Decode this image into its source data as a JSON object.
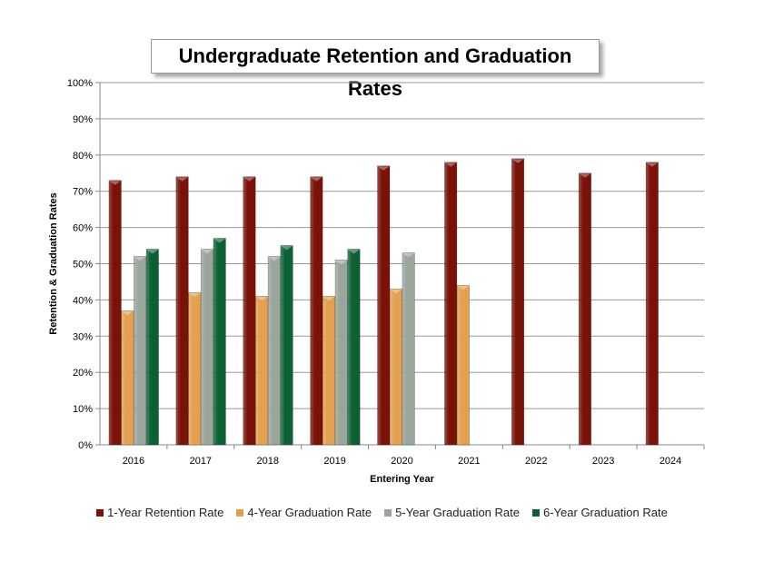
{
  "chart_data": {
    "type": "bar",
    "title": "Undergraduate Retention and Graduation Rates",
    "xlabel": "Entering Year",
    "ylabel": "Retention & Graduation Rates",
    "ylim": [
      0,
      100
    ],
    "yticks": [
      "0%",
      "10%",
      "20%",
      "30%",
      "40%",
      "50%",
      "60%",
      "70%",
      "80%",
      "90%",
      "100%"
    ],
    "categories": [
      "2016",
      "2017",
      "2018",
      "2019",
      "2020",
      "2021",
      "2022",
      "2023",
      "2024"
    ],
    "legend_position": "bottom",
    "series": [
      {
        "name": "1-Year Retention Rate",
        "color": "#7a1208",
        "values": [
          73,
          74,
          74,
          74,
          77,
          78,
          79,
          75,
          78
        ]
      },
      {
        "name": "4-Year Graduation Rate",
        "color": "#e3a04e",
        "values": [
          37,
          42,
          41,
          41,
          43,
          44,
          null,
          null,
          null
        ]
      },
      {
        "name": "5-Year Graduation Rate",
        "color": "#9aa59c",
        "values": [
          52,
          54,
          52,
          51,
          53,
          null,
          null,
          null,
          null
        ]
      },
      {
        "name": "6-Year Graduation Rate",
        "color": "#0b6134",
        "values": [
          54,
          57,
          55,
          54,
          null,
          null,
          null,
          null,
          null
        ]
      }
    ]
  }
}
